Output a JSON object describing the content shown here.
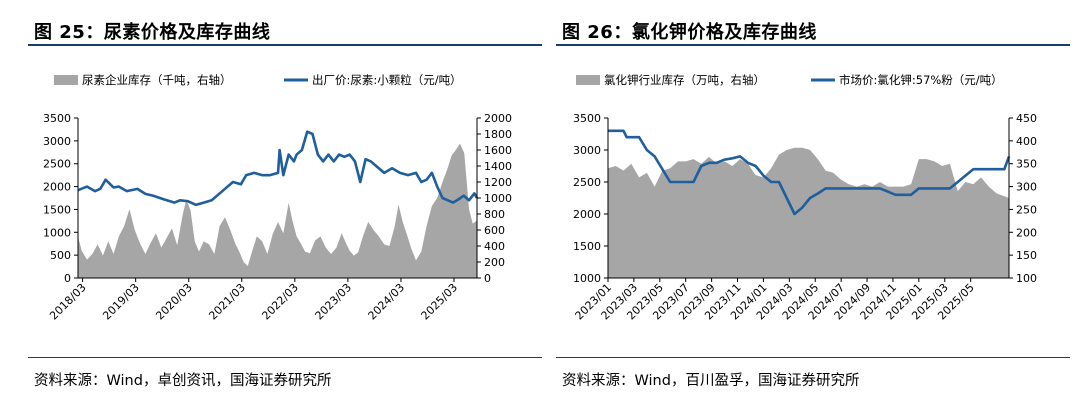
{
  "left": {
    "title": "图 25：尿素价格及库存曲线",
    "source": "资料来源：Wind，卓创资讯，国海证券研究所"
  },
  "right": {
    "title": "图 26：氯化钾价格及库存曲线",
    "source": "资料来源：Wind，百川盈孚，国海证券研究所"
  },
  "colors": {
    "area": "#a6a6a6",
    "line": "#1f5f9e",
    "rule": "#1a3d6d"
  },
  "chart_data": [
    {
      "type": "line",
      "subtype": "area+line dual axis",
      "title": "",
      "legend_position": "top",
      "x_ticks": [
        "2018/03",
        "2019/03",
        "2020/03",
        "2021/03",
        "2022/03",
        "2023/03",
        "2024/03",
        "2025/03"
      ],
      "x_range": [
        2018.08,
        2025.6
      ],
      "y_left": {
        "ticks": [
          "0",
          "500",
          "1000",
          "1500",
          "2000",
          "2500",
          "3000",
          "3500"
        ],
        "range": [
          0,
          3500
        ]
      },
      "y_right": {
        "ticks": [
          "0",
          "200",
          "400",
          "600",
          "800",
          "1000",
          "1200",
          "1400",
          "1600",
          "1800",
          "2000"
        ],
        "range": [
          0,
          2000
        ]
      },
      "series": [
        {
          "name": "尿素企业库存（千吨，右轴）",
          "kind": "area",
          "axis": "right",
          "x": [
            2018.08,
            2018.15,
            2018.25,
            2018.35,
            2018.45,
            2018.55,
            2018.65,
            2018.75,
            2018.85,
            2018.95,
            2019.05,
            2019.15,
            2019.25,
            2019.35,
            2019.45,
            2019.55,
            2019.65,
            2019.75,
            2019.85,
            2019.95,
            2020.05,
            2020.12,
            2020.2,
            2020.28,
            2020.36,
            2020.45,
            2020.55,
            2020.65,
            2020.75,
            2020.85,
            2020.95,
            2021.05,
            2021.12,
            2021.2,
            2021.28,
            2021.36,
            2021.45,
            2021.55,
            2021.65,
            2021.75,
            2021.85,
            2021.95,
            2022.05,
            2022.12,
            2022.2,
            2022.28,
            2022.36,
            2022.45,
            2022.55,
            2022.65,
            2022.75,
            2022.85,
            2022.95,
            2023.05,
            2023.12,
            2023.2,
            2023.28,
            2023.36,
            2023.45,
            2023.55,
            2023.65,
            2023.75,
            2023.85,
            2023.95,
            2024.05,
            2024.12,
            2024.2,
            2024.28,
            2024.36,
            2024.45,
            2024.55,
            2024.65,
            2024.75,
            2024.85,
            2024.95,
            2025.05,
            2025.12,
            2025.2,
            2025.28,
            2025.36,
            2025.45,
            2025.52,
            2025.6
          ],
          "y": [
            520,
            340,
            230,
            300,
            420,
            280,
            460,
            300,
            520,
            650,
            860,
            600,
            430,
            300,
            440,
            560,
            380,
            500,
            620,
            410,
            780,
            980,
            850,
            460,
            330,
            460,
            420,
            300,
            650,
            760,
            600,
            420,
            330,
            200,
            150,
            330,
            520,
            460,
            300,
            550,
            700,
            560,
            940,
            720,
            520,
            430,
            330,
            310,
            470,
            520,
            380,
            300,
            380,
            560,
            450,
            340,
            280,
            320,
            520,
            700,
            600,
            520,
            420,
            400,
            650,
            920,
            700,
            540,
            370,
            220,
            330,
            650,
            900,
            1000,
            1200,
            1380,
            1530,
            1600,
            1680,
            1560,
            860,
            680,
            720
          ]
        },
        {
          "name": "出厂价:尿素:小颗粒（元/吨）",
          "kind": "line",
          "axis": "left",
          "x": [
            2018.08,
            2018.25,
            2018.4,
            2018.5,
            2018.6,
            2018.75,
            2018.85,
            2019.0,
            2019.2,
            2019.35,
            2019.5,
            2019.7,
            2019.9,
            2020.0,
            2020.15,
            2020.3,
            2020.45,
            2020.6,
            2020.75,
            2020.9,
            2021.0,
            2021.15,
            2021.25,
            2021.4,
            2021.55,
            2021.7,
            2021.85,
            2021.88,
            2021.95,
            2022.05,
            2022.15,
            2022.2,
            2022.3,
            2022.4,
            2022.5,
            2022.6,
            2022.7,
            2022.8,
            2022.9,
            2023.0,
            2023.1,
            2023.2,
            2023.3,
            2023.4,
            2023.5,
            2023.6,
            2023.7,
            2023.85,
            2024.0,
            2024.15,
            2024.3,
            2024.45,
            2024.55,
            2024.65,
            2024.75,
            2024.85,
            2024.95,
            2025.05,
            2025.15,
            2025.25,
            2025.35,
            2025.45,
            2025.55,
            2025.6
          ],
          "y": [
            1920,
            2000,
            1900,
            1950,
            2150,
            1980,
            2000,
            1900,
            1950,
            1840,
            1800,
            1720,
            1650,
            1700,
            1680,
            1600,
            1650,
            1700,
            1850,
            2000,
            2100,
            2050,
            2250,
            2300,
            2250,
            2250,
            2300,
            2800,
            2250,
            2700,
            2550,
            2700,
            2800,
            3200,
            3150,
            2700,
            2550,
            2700,
            2550,
            2700,
            2650,
            2700,
            2550,
            2100,
            2600,
            2550,
            2450,
            2300,
            2400,
            2300,
            2250,
            2300,
            2100,
            2150,
            2300,
            2000,
            1750,
            1700,
            1650,
            1720,
            1800,
            1700,
            1850,
            1750
          ]
        }
      ]
    },
    {
      "type": "line",
      "subtype": "area+line dual axis",
      "title": "",
      "legend_position": "top",
      "x_ticks": [
        "2023/01",
        "2023/03",
        "2023/05",
        "2023/07",
        "2023/09",
        "2023/11",
        "2024/01",
        "2024/03",
        "2024/05",
        "2024/07",
        "2024/09",
        "2024/11",
        "2025/01",
        "2025/03",
        "2025/05"
      ],
      "x_range": [
        2023.0,
        2025.58
      ],
      "y_left": {
        "ticks": [
          "1000",
          "1500",
          "2000",
          "2500",
          "3000",
          "3500"
        ],
        "range": [
          1000,
          3500
        ]
      },
      "y_right": {
        "ticks": [
          "100",
          "150",
          "200",
          "250",
          "300",
          "350",
          "400",
          "450"
        ],
        "range": [
          100,
          450
        ]
      },
      "series": [
        {
          "name": "氯化钾行业库存（万吨，右轴）",
          "kind": "area",
          "axis": "right",
          "x": [
            2023.0,
            2023.05,
            2023.1,
            2023.15,
            2023.2,
            2023.25,
            2023.3,
            2023.35,
            2023.4,
            2023.45,
            2023.5,
            2023.55,
            2023.6,
            2023.65,
            2023.7,
            2023.75,
            2023.8,
            2023.85,
            2023.9,
            2023.95,
            2024.0,
            2024.05,
            2024.1,
            2024.15,
            2024.2,
            2024.25,
            2024.3,
            2024.35,
            2024.4,
            2024.45,
            2024.5,
            2024.55,
            2024.6,
            2024.65,
            2024.7,
            2024.75,
            2024.8,
            2024.85,
            2024.9,
            2024.95,
            2025.0,
            2025.05,
            2025.1,
            2025.15,
            2025.2,
            2025.25,
            2025.3,
            2025.35,
            2025.4,
            2025.45,
            2025.5,
            2025.58
          ],
          "y": [
            340,
            345,
            335,
            350,
            320,
            330,
            300,
            335,
            340,
            355,
            355,
            360,
            350,
            365,
            350,
            355,
            345,
            360,
            350,
            325,
            320,
            340,
            370,
            380,
            385,
            385,
            380,
            360,
            335,
            330,
            315,
            305,
            300,
            305,
            300,
            310,
            300,
            300,
            300,
            305,
            360,
            360,
            355,
            345,
            350,
            290,
            310,
            305,
            320,
            300,
            285,
            275
          ]
        },
        {
          "name": "市场价:氯化钾:57%粉（元/吨）",
          "kind": "line",
          "axis": "left",
          "x": [
            2023.0,
            2023.1,
            2023.12,
            2023.2,
            2023.25,
            2023.3,
            2023.35,
            2023.4,
            2023.45,
            2023.5,
            2023.55,
            2023.6,
            2023.65,
            2023.7,
            2023.75,
            2023.8,
            2023.85,
            2023.9,
            2023.95,
            2024.0,
            2024.05,
            2024.1,
            2024.15,
            2024.2,
            2024.25,
            2024.3,
            2024.35,
            2024.4,
            2024.45,
            2024.5,
            2024.55,
            2024.6,
            2024.65,
            2024.7,
            2024.75,
            2024.8,
            2024.85,
            2024.9,
            2024.95,
            2025.0,
            2025.05,
            2025.1,
            2025.15,
            2025.2,
            2025.25,
            2025.3,
            2025.35,
            2025.4,
            2025.45,
            2025.5,
            2025.55,
            2025.58
          ],
          "y": [
            3300,
            3300,
            3200,
            3200,
            3000,
            2900,
            2700,
            2500,
            2500,
            2500,
            2500,
            2750,
            2800,
            2800,
            2850,
            2870,
            2900,
            2800,
            2750,
            2600,
            2500,
            2500,
            2250,
            2000,
            2100,
            2250,
            2320,
            2400,
            2400,
            2400,
            2400,
            2400,
            2400,
            2400,
            2400,
            2350,
            2300,
            2300,
            2300,
            2400,
            2400,
            2400,
            2400,
            2400,
            2500,
            2600,
            2700,
            2700,
            2700,
            2700,
            2700,
            2900
          ]
        }
      ]
    }
  ]
}
